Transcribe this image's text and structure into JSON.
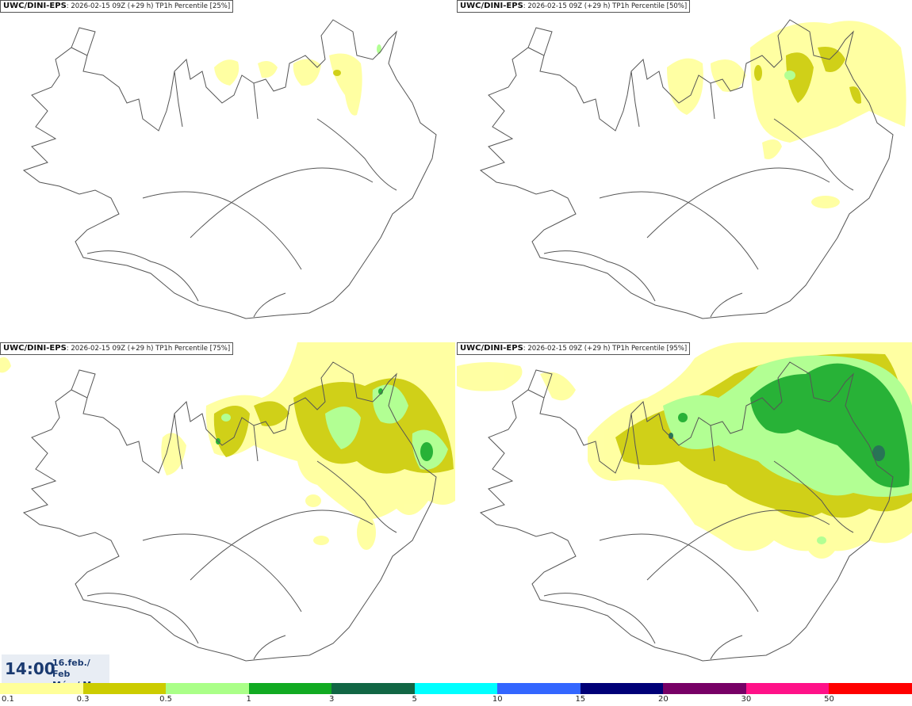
{
  "panels": [
    {
      "model": "UWC/DINI-EPS",
      "run": "2026-02-15 09Z",
      "lead": "(+29 h)",
      "variable": "TP1h Percentile",
      "percentile": "[25%]"
    },
    {
      "model": "UWC/DINI-EPS",
      "run": "2026-02-15 09Z",
      "lead": "(+29 h)",
      "variable": "TP1h Percentile",
      "percentile": "[50%]"
    },
    {
      "model": "UWC/DINI-EPS",
      "run": "2026-02-15 09Z",
      "lead": "(+29 h)",
      "variable": "TP1h Percentile",
      "percentile": "[75%]"
    },
    {
      "model": "UWC/DINI-EPS",
      "run": "2026-02-15 09Z",
      "lead": "(+29 h)",
      "variable": "TP1h Percentile",
      "percentile": "[95%]"
    }
  ],
  "valid_time": {
    "time": "14:00",
    "date_line1": "16.feb./ Feb",
    "date_line2": "Mán./ Mon"
  },
  "legend": {
    "colors": [
      "#ffff99",
      "#cccc00",
      "#aaff88",
      "#11aa22",
      "#116644",
      "#00ffff",
      "#3366ff",
      "#000077",
      "#770066",
      "#ff1188",
      "#ff0000"
    ],
    "labels": [
      "0.1",
      "0.3",
      "0.5",
      "1",
      "3",
      "5",
      "10",
      "15",
      "20",
      "30",
      "50"
    ]
  }
}
